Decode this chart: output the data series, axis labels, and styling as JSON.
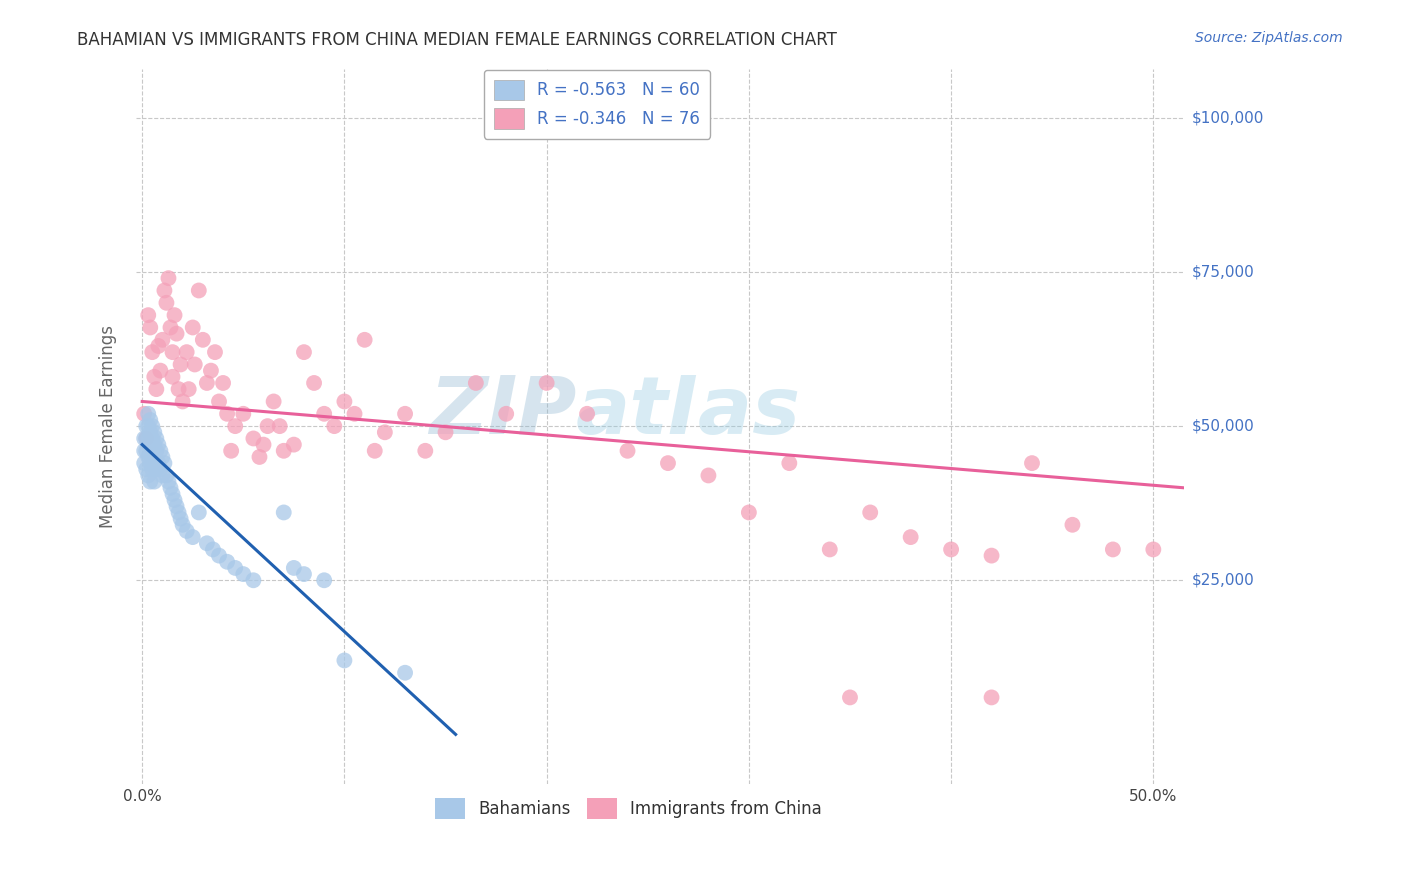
{
  "title": "BAHAMIAN VS IMMIGRANTS FROM CHINA MEDIAN FEMALE EARNINGS CORRELATION CHART",
  "source": "Source: ZipAtlas.com",
  "ylabel_label": "Median Female Earnings",
  "x_ticks": [
    0.0,
    0.1,
    0.2,
    0.3,
    0.4,
    0.5
  ],
  "x_tick_labels": [
    "0.0%",
    "",
    "",
    "",
    "",
    "50.0%"
  ],
  "y_tick_labels": [
    "$25,000",
    "$50,000",
    "$75,000",
    "$100,000"
  ],
  "y_tick_values": [
    25000,
    50000,
    75000,
    100000
  ],
  "xlim": [
    -0.003,
    0.515
  ],
  "ylim": [
    -8000,
    108000
  ],
  "legend_label_1": "R = -0.563   N = 60",
  "legend_label_2": "R = -0.346   N = 76",
  "legend_bottom_1": "Bahamians",
  "legend_bottom_2": "Immigrants from China",
  "watermark_zip": "ZIP",
  "watermark_atlas": "atIas",
  "blue_color": "#a8c8e8",
  "pink_color": "#f4a0b8",
  "blue_line_color": "#2060b0",
  "pink_line_color": "#e8609a",
  "blue_scatter_x": [
    0.001,
    0.001,
    0.001,
    0.002,
    0.002,
    0.002,
    0.002,
    0.003,
    0.003,
    0.003,
    0.003,
    0.003,
    0.004,
    0.004,
    0.004,
    0.004,
    0.004,
    0.005,
    0.005,
    0.005,
    0.005,
    0.006,
    0.006,
    0.006,
    0.006,
    0.007,
    0.007,
    0.007,
    0.008,
    0.008,
    0.009,
    0.009,
    0.01,
    0.01,
    0.011,
    0.012,
    0.013,
    0.014,
    0.015,
    0.016,
    0.017,
    0.018,
    0.019,
    0.02,
    0.022,
    0.025,
    0.028,
    0.032,
    0.035,
    0.038,
    0.042,
    0.046,
    0.05,
    0.055,
    0.07,
    0.075,
    0.08,
    0.09,
    0.1,
    0.13
  ],
  "blue_scatter_y": [
    48000,
    46000,
    44000,
    50000,
    48000,
    46000,
    43000,
    52000,
    50000,
    48000,
    45000,
    42000,
    51000,
    49000,
    47000,
    44000,
    41000,
    50000,
    48000,
    45000,
    43000,
    49000,
    47000,
    44000,
    41000,
    48000,
    46000,
    43000,
    47000,
    44000,
    46000,
    43000,
    45000,
    42000,
    44000,
    42000,
    41000,
    40000,
    39000,
    38000,
    37000,
    36000,
    35000,
    34000,
    33000,
    32000,
    36000,
    31000,
    30000,
    29000,
    28000,
    27000,
    26000,
    25000,
    36000,
    27000,
    26000,
    25000,
    12000,
    10000
  ],
  "pink_scatter_x": [
    0.001,
    0.002,
    0.003,
    0.004,
    0.005,
    0.006,
    0.007,
    0.008,
    0.009,
    0.01,
    0.011,
    0.012,
    0.013,
    0.014,
    0.015,
    0.015,
    0.016,
    0.017,
    0.018,
    0.019,
    0.02,
    0.022,
    0.023,
    0.025,
    0.026,
    0.028,
    0.03,
    0.032,
    0.034,
    0.036,
    0.038,
    0.04,
    0.042,
    0.044,
    0.046,
    0.05,
    0.055,
    0.058,
    0.06,
    0.062,
    0.065,
    0.068,
    0.07,
    0.075,
    0.08,
    0.085,
    0.09,
    0.095,
    0.1,
    0.105,
    0.11,
    0.115,
    0.12,
    0.13,
    0.14,
    0.15,
    0.165,
    0.18,
    0.2,
    0.22,
    0.24,
    0.26,
    0.28,
    0.3,
    0.32,
    0.34,
    0.36,
    0.38,
    0.4,
    0.42,
    0.44,
    0.46,
    0.48,
    0.5,
    0.35,
    0.42
  ],
  "pink_scatter_y": [
    52000,
    48000,
    68000,
    66000,
    62000,
    58000,
    56000,
    63000,
    59000,
    64000,
    72000,
    70000,
    74000,
    66000,
    62000,
    58000,
    68000,
    65000,
    56000,
    60000,
    54000,
    62000,
    56000,
    66000,
    60000,
    72000,
    64000,
    57000,
    59000,
    62000,
    54000,
    57000,
    52000,
    46000,
    50000,
    52000,
    48000,
    45000,
    47000,
    50000,
    54000,
    50000,
    46000,
    47000,
    62000,
    57000,
    52000,
    50000,
    54000,
    52000,
    64000,
    46000,
    49000,
    52000,
    46000,
    49000,
    57000,
    52000,
    57000,
    52000,
    46000,
    44000,
    42000,
    36000,
    44000,
    30000,
    36000,
    32000,
    30000,
    29000,
    44000,
    34000,
    30000,
    30000,
    6000,
    6000
  ],
  "blue_trendline_x": [
    0.0,
    0.155
  ],
  "blue_trendline_y": [
    47000,
    0
  ],
  "pink_trendline_x": [
    0.0,
    0.515
  ],
  "pink_trendline_y": [
    54000,
    40000
  ],
  "background_color": "#ffffff",
  "grid_color": "#c8c8c8",
  "title_color": "#333333",
  "axis_label_color": "#666666",
  "right_label_color": "#4472c4"
}
